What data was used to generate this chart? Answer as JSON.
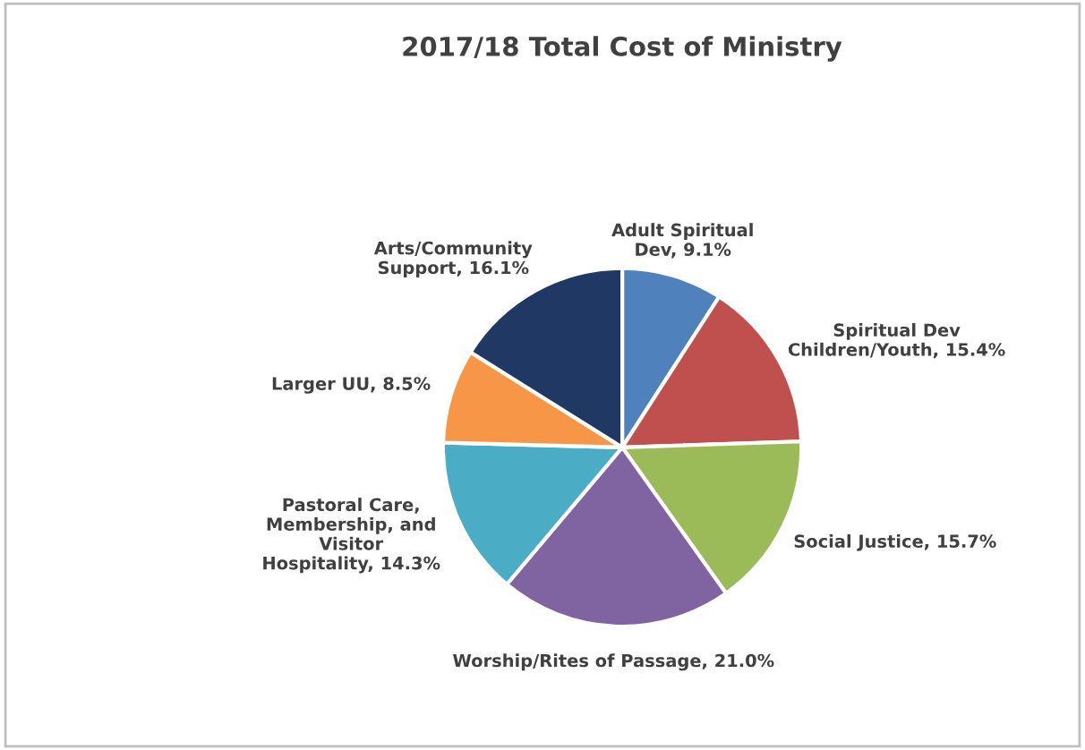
{
  "chart_data": {
    "type": "pie",
    "title": "2017/18 Total Cost of Ministry",
    "categories": [
      "Adult Spiritual\nDev",
      "Spiritual Dev\nChildren/Youth",
      "Social Justice",
      "Worship/Rites of Passage",
      "Pastoral Care,\nMembership, and\nVisitor\nHospitality",
      "Larger UU",
      "Arts/Community\nSupport"
    ],
    "values": [
      9.1,
      15.4,
      15.7,
      21.0,
      14.3,
      8.5,
      16.1
    ],
    "value_labels": [
      "9.1%",
      "15.4%",
      "15.7%",
      "21.0%",
      "14.3%",
      "8.5%",
      "16.1%"
    ],
    "colors": [
      "#4f81bd",
      "#c0504d",
      "#9bbb59",
      "#8064a2",
      "#4bacc6",
      "#f79646",
      "#1f3864"
    ],
    "legend": false
  }
}
